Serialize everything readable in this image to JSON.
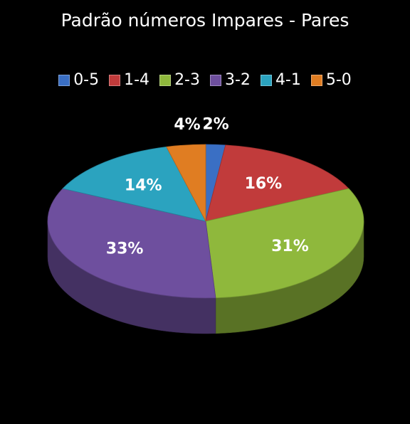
{
  "chart_data": {
    "type": "pie",
    "title": "Padrão números Impares - Pares",
    "legend_position": "top",
    "style": "3d",
    "categories": [
      "0-5",
      "1-4",
      "2-3",
      "3-2",
      "4-1",
      "5-0"
    ],
    "values": [
      2,
      16,
      31,
      33,
      14,
      4
    ],
    "labels": [
      "2%",
      "16%",
      "31%",
      "33%",
      "14%",
      "4%"
    ],
    "colors": [
      "#3a6fc4",
      "#c13b3b",
      "#8fb83c",
      "#6e4f9e",
      "#2ba3bf",
      "#e07d22"
    ]
  }
}
